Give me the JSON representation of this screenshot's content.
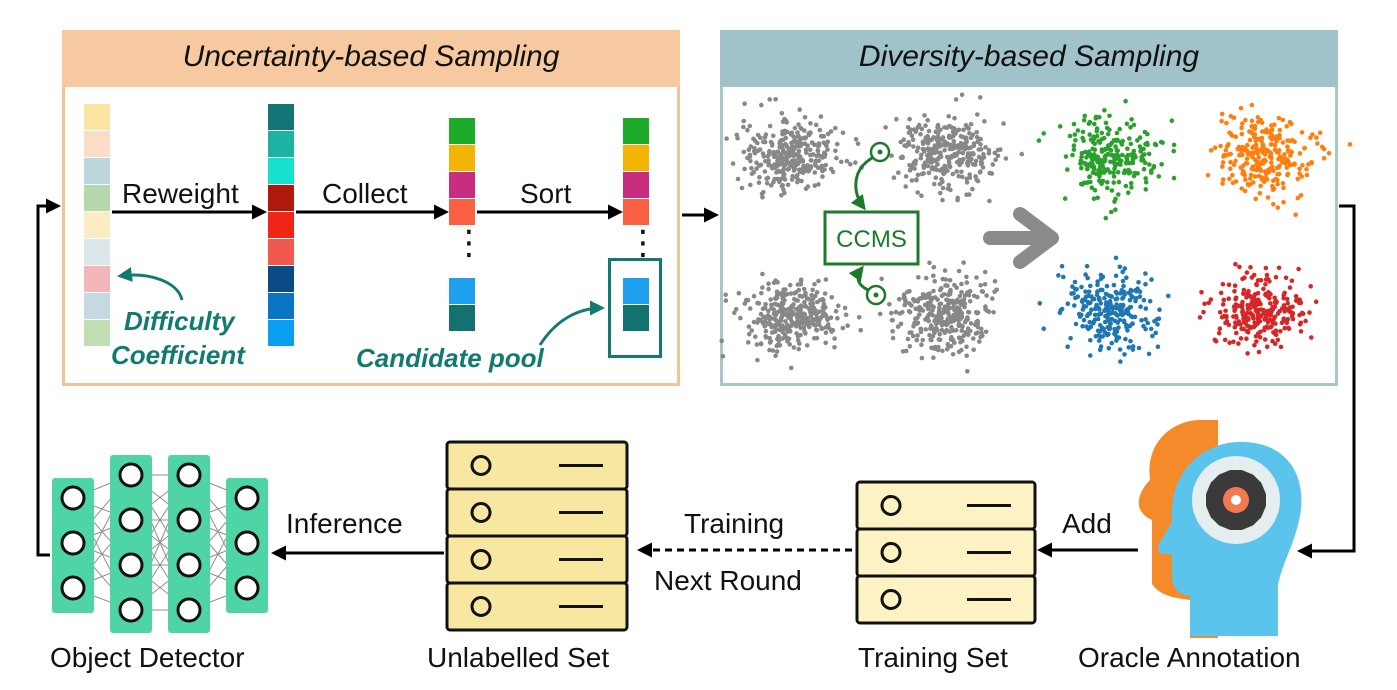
{
  "uncertainty_panel": {
    "title": "Uncertainty-based Sampling",
    "labels": {
      "reweight": "Reweight",
      "collect": "Collect",
      "sort": "Sort"
    },
    "difficulty_line1": "Difficulty",
    "difficulty_line2": "Coefficient",
    "candidate_pool": "Candidate pool",
    "ellipsis": "⋮",
    "col1_colors": [
      "#fbe3a1",
      "#fbdcc6",
      "#bcd6dc",
      "#b5d9ad",
      "#fcecc4",
      "#dce7ea",
      "#f4b7b9",
      "#c6d9e3",
      "#c1dfb3"
    ],
    "col2_colors": [
      "#107574",
      "#1bb3a2",
      "#17e0cc",
      "#b0180d",
      "#ef2515",
      "#f2584d",
      "#0a4a86",
      "#0a74c4",
      "#0a9ef0"
    ],
    "col3_top": [
      "#1eab2a",
      "#f2b505",
      "#c92d80",
      "#fa6044"
    ],
    "col3_bottom": [
      "#1fa0ee",
      "#137170"
    ],
    "col4_top": [
      "#1eab2a",
      "#f2b505",
      "#c92d80",
      "#fa6044"
    ],
    "col4_bottom": [
      "#1fa0ee",
      "#137170"
    ]
  },
  "diversity_panel": {
    "title": "Diversity-based Sampling",
    "ccms_label": "CCMS",
    "cluster_colors": [
      "#2ca02c",
      "#ff7f0e",
      "#1f77b4",
      "#d62728"
    ],
    "gray": "#888888"
  },
  "bottom": {
    "object_detector": "Object Detector",
    "unlabelled_set": "Unlabelled Set",
    "training_set": "Training Set",
    "oracle_annotation": "Oracle Annotation",
    "inference": "Inference",
    "training": "Training",
    "next_round": "Next Round",
    "add": "Add"
  },
  "colors": {
    "uncertainty_header": "#f7c9a0",
    "uncertainty_border": "#f3c394",
    "diversity_header": "#9fc3c8",
    "diversity_border": "#a7c7cb",
    "teal_text": "#137a73",
    "ccms_green": "#1e7a2a",
    "detector_green": "#4fd5a5",
    "unlabelled_fill": "#f8e7a0",
    "training_fill": "#fdf2c4"
  }
}
